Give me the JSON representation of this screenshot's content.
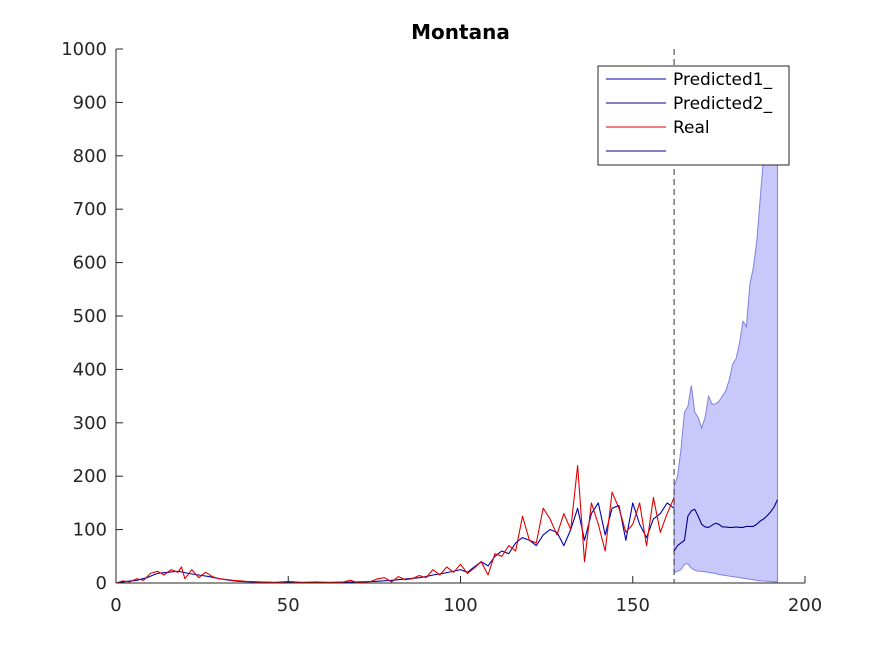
{
  "chart_data": {
    "type": "line",
    "title": "Montana",
    "xlabel": "",
    "ylabel": "",
    "xlim": [
      0,
      200
    ],
    "ylim": [
      0,
      1000
    ],
    "xticks": [
      "0",
      "50",
      "100",
      "150",
      "200"
    ],
    "yticks": [
      "0",
      "100",
      "200",
      "300",
      "400",
      "500",
      "600",
      "700",
      "800",
      "900",
      "1000"
    ],
    "grid": false,
    "legend_position": "top-right",
    "legend": [
      "Predicted1_",
      "Predicted2_",
      "Real",
      ""
    ],
    "forecast_start_x": 162,
    "colors": {
      "predicted1": "#0000b0",
      "predicted2": "#00008b",
      "real": "#e00000",
      "band_fill": "#c8c8fa",
      "band_edge": "#8080e0",
      "divider": "#333333"
    },
    "series": [
      {
        "name": "Predicted1_",
        "x": [
          0,
          3,
          6,
          9,
          12,
          15,
          18,
          21,
          24,
          27,
          30,
          33,
          36,
          40,
          45,
          50,
          55,
          60,
          65,
          70,
          75,
          80,
          85,
          88,
          90,
          92,
          95,
          98,
          100,
          102,
          104,
          106,
          108,
          110,
          112,
          114,
          116,
          118,
          120,
          122,
          124,
          126,
          128,
          130,
          132,
          134,
          136,
          138,
          140,
          142,
          144,
          146,
          148,
          150,
          152,
          154,
          156,
          158,
          160,
          162
        ],
        "y": [
          0,
          3,
          5,
          10,
          18,
          20,
          22,
          18,
          15,
          12,
          8,
          5,
          3,
          2,
          1,
          1,
          1,
          1,
          1,
          2,
          3,
          5,
          8,
          10,
          12,
          15,
          18,
          22,
          25,
          20,
          30,
          40,
          32,
          50,
          60,
          55,
          75,
          85,
          80,
          70,
          90,
          100,
          95,
          70,
          100,
          140,
          80,
          130,
          150,
          90,
          140,
          145,
          80,
          150,
          110,
          85,
          120,
          130,
          150,
          140
        ]
      },
      {
        "name": "Predicted2_",
        "x": [
          162,
          163,
          164,
          165,
          166,
          167,
          168,
          169,
          170,
          171,
          172,
          173,
          174,
          175,
          176,
          177,
          178,
          179,
          180,
          181,
          182,
          183,
          184,
          185,
          186,
          187,
          188,
          189,
          190,
          191,
          192
        ],
        "y": [
          60,
          70,
          75,
          80,
          125,
          135,
          138,
          125,
          110,
          105,
          104,
          108,
          112,
          110,
          105,
          105,
          104,
          104,
          105,
          104,
          104,
          106,
          106,
          106,
          110,
          116,
          120,
          126,
          133,
          142,
          156
        ]
      },
      {
        "name": "Real",
        "x": [
          0,
          2,
          4,
          6,
          8,
          10,
          12,
          14,
          16,
          18,
          19,
          20,
          22,
          24,
          26,
          28,
          30,
          34,
          38,
          42,
          46,
          50,
          54,
          58,
          62,
          66,
          68,
          70,
          74,
          76,
          78,
          80,
          82,
          84,
          86,
          88,
          90,
          92,
          94,
          96,
          98,
          100,
          102,
          104,
          106,
          108,
          110,
          112,
          114,
          116,
          118,
          120,
          122,
          124,
          126,
          128,
          130,
          132,
          134,
          136,
          138,
          140,
          142,
          144,
          146,
          148,
          150,
          152,
          154,
          156,
          158,
          160,
          162
        ],
        "y": [
          0,
          4,
          2,
          8,
          5,
          18,
          22,
          15,
          25,
          20,
          30,
          8,
          25,
          10,
          20,
          12,
          8,
          5,
          3,
          2,
          1,
          3,
          1,
          2,
          1,
          2,
          5,
          1,
          3,
          8,
          10,
          2,
          12,
          6,
          8,
          14,
          10,
          25,
          15,
          30,
          20,
          35,
          18,
          28,
          40,
          15,
          55,
          50,
          70,
          60,
          125,
          80,
          75,
          140,
          120,
          90,
          130,
          100,
          220,
          40,
          150,
          110,
          60,
          170,
          140,
          95,
          110,
          150,
          70,
          160,
          95,
          130,
          160
        ]
      },
      {
        "name": "",
        "x": [
          162,
          163,
          164,
          165,
          166,
          167,
          168,
          169,
          170,
          171,
          172,
          173,
          174,
          175,
          176,
          177,
          178,
          179,
          180,
          181,
          182,
          183,
          184,
          185,
          186,
          187,
          188,
          189,
          190,
          191,
          192
        ],
        "y": [
          60,
          70,
          75,
          80,
          125,
          135,
          138,
          125,
          110,
          105,
          104,
          108,
          112,
          110,
          105,
          105,
          104,
          104,
          105,
          104,
          104,
          106,
          106,
          106,
          110,
          116,
          120,
          126,
          133,
          142,
          156
        ]
      }
    ],
    "band": {
      "x": [
        162,
        163,
        164,
        165,
        166,
        167,
        168,
        169,
        170,
        171,
        172,
        173,
        174,
        175,
        176,
        177,
        178,
        179,
        180,
        181,
        182,
        183,
        184,
        185,
        186,
        187,
        188,
        189,
        190,
        191,
        192
      ],
      "lower": [
        20,
        22,
        25,
        35,
        36,
        28,
        24,
        22,
        22,
        21,
        20,
        19,
        18,
        16,
        15,
        14,
        13,
        12,
        11,
        10,
        9,
        8,
        7,
        6,
        5,
        4,
        4,
        3,
        3,
        2,
        2
      ],
      "upper": [
        180,
        200,
        250,
        320,
        330,
        370,
        320,
        310,
        290,
        310,
        350,
        335,
        335,
        340,
        350,
        360,
        380,
        410,
        420,
        450,
        490,
        480,
        560,
        590,
        640,
        720,
        800,
        830,
        880,
        920,
        960
      ]
    }
  }
}
